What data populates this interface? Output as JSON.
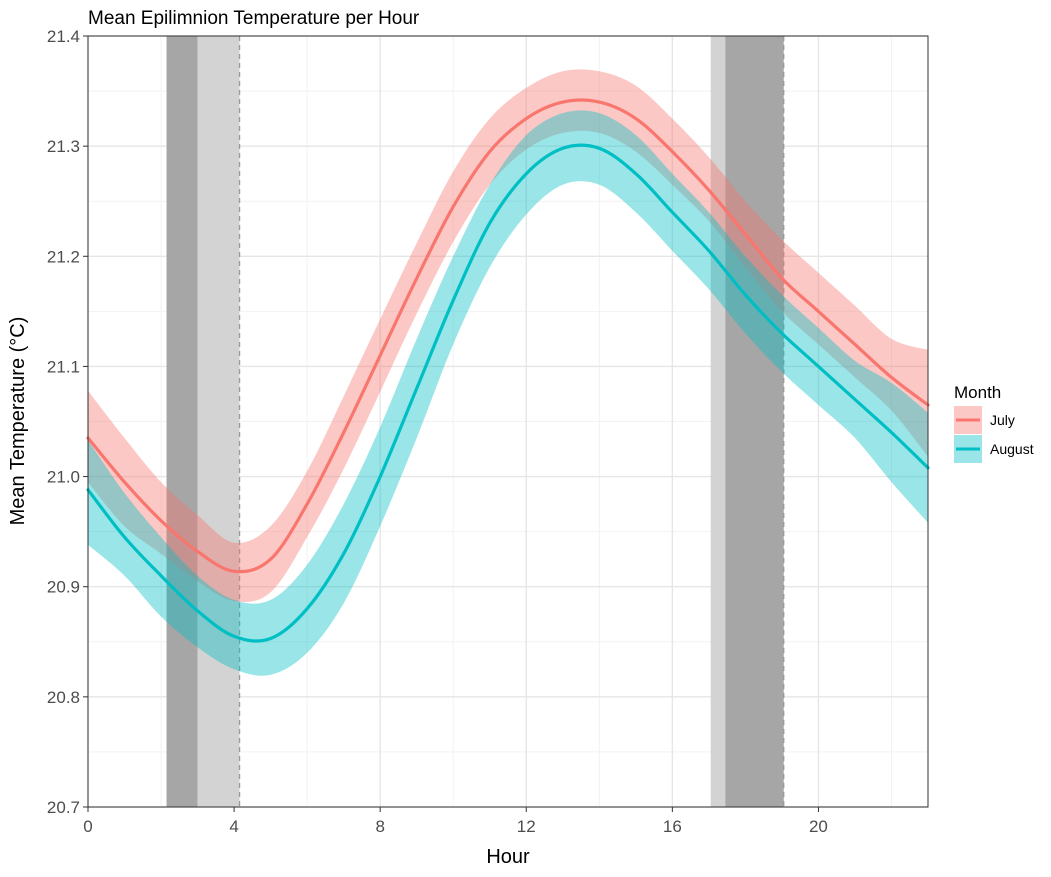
{
  "chart_data": {
    "type": "line",
    "title": "Mean Epilimnion Temperature per Hour",
    "xlabel": "Hour",
    "ylabel": "Mean Temperature (°C)",
    "xlim": [
      0,
      23
    ],
    "ylim": [
      20.7,
      21.4
    ],
    "x_ticks": [
      0,
      4,
      8,
      12,
      16,
      20
    ],
    "y_ticks": [
      20.7,
      20.8,
      20.9,
      21.0,
      21.1,
      21.2,
      21.3,
      21.4
    ],
    "x_tick_labels": [
      "0",
      "4",
      "8",
      "12",
      "16",
      "20"
    ],
    "y_tick_labels": [
      "20.7",
      "20.8",
      "20.9",
      "21.0",
      "21.1",
      "21.2",
      "21.3",
      "21.4"
    ],
    "grid": true,
    "legend": {
      "title": "Month",
      "placement": "right"
    },
    "shaded_regions": [
      {
        "x_start": 2.15,
        "x_end": 3.0,
        "shade": "dark"
      },
      {
        "x_start": 3.0,
        "x_end": 4.15,
        "shade": "light"
      },
      {
        "x_start": 17.05,
        "x_end": 17.45,
        "shade": "light"
      },
      {
        "x_start": 17.45,
        "x_end": 19.05,
        "shade": "dark"
      }
    ],
    "vlines": [
      4.15,
      19.05
    ],
    "x": [
      0,
      1,
      2,
      3,
      4,
      5,
      6,
      7,
      8,
      9,
      10,
      11,
      12,
      13,
      14,
      15,
      16,
      17,
      18,
      19,
      20,
      21,
      22,
      23
    ],
    "series": [
      {
        "name": "July",
        "color": "#F8766D",
        "fill": "#FBBAB6",
        "values": [
          21.035,
          20.995,
          20.96,
          20.932,
          20.914,
          20.925,
          20.975,
          21.04,
          21.11,
          21.18,
          21.245,
          21.295,
          21.325,
          21.34,
          21.34,
          21.325,
          21.295,
          21.26,
          21.22,
          21.18,
          21.15,
          21.12,
          21.09,
          21.065
        ],
        "lower": [
          20.995,
          20.955,
          20.93,
          20.905,
          20.887,
          20.895,
          20.945,
          21.007,
          21.077,
          21.148,
          21.213,
          21.265,
          21.297,
          21.312,
          21.312,
          21.295,
          21.265,
          21.232,
          21.19,
          21.15,
          21.12,
          21.09,
          21.06,
          21.018
        ],
        "upper": [
          21.078,
          21.035,
          20.995,
          20.965,
          20.94,
          20.955,
          21.005,
          21.073,
          21.143,
          21.212,
          21.277,
          21.325,
          21.353,
          21.368,
          21.368,
          21.355,
          21.325,
          21.29,
          21.25,
          21.215,
          21.185,
          21.155,
          21.125,
          21.115
        ]
      },
      {
        "name": "August",
        "color": "#00BFC4",
        "fill": "#99E5E7",
        "values": [
          20.988,
          20.945,
          20.91,
          20.878,
          20.855,
          20.853,
          20.88,
          20.93,
          21.0,
          21.08,
          21.16,
          21.23,
          21.275,
          21.298,
          21.298,
          21.275,
          21.24,
          21.205,
          21.165,
          21.13,
          21.1,
          21.07,
          21.04,
          21.008
        ],
        "lower": [
          20.938,
          20.91,
          20.873,
          20.845,
          20.825,
          20.82,
          20.84,
          20.885,
          20.955,
          21.035,
          21.12,
          21.19,
          21.238,
          21.265,
          21.265,
          21.24,
          21.205,
          21.17,
          21.13,
          21.095,
          21.065,
          21.035,
          20.995,
          20.958
        ],
        "upper": [
          21.033,
          20.985,
          20.945,
          20.91,
          20.888,
          20.888,
          20.92,
          20.975,
          21.045,
          21.125,
          21.2,
          21.265,
          21.31,
          21.33,
          21.33,
          21.31,
          21.275,
          21.24,
          21.2,
          21.165,
          21.135,
          21.105,
          21.085,
          21.058
        ]
      }
    ]
  }
}
